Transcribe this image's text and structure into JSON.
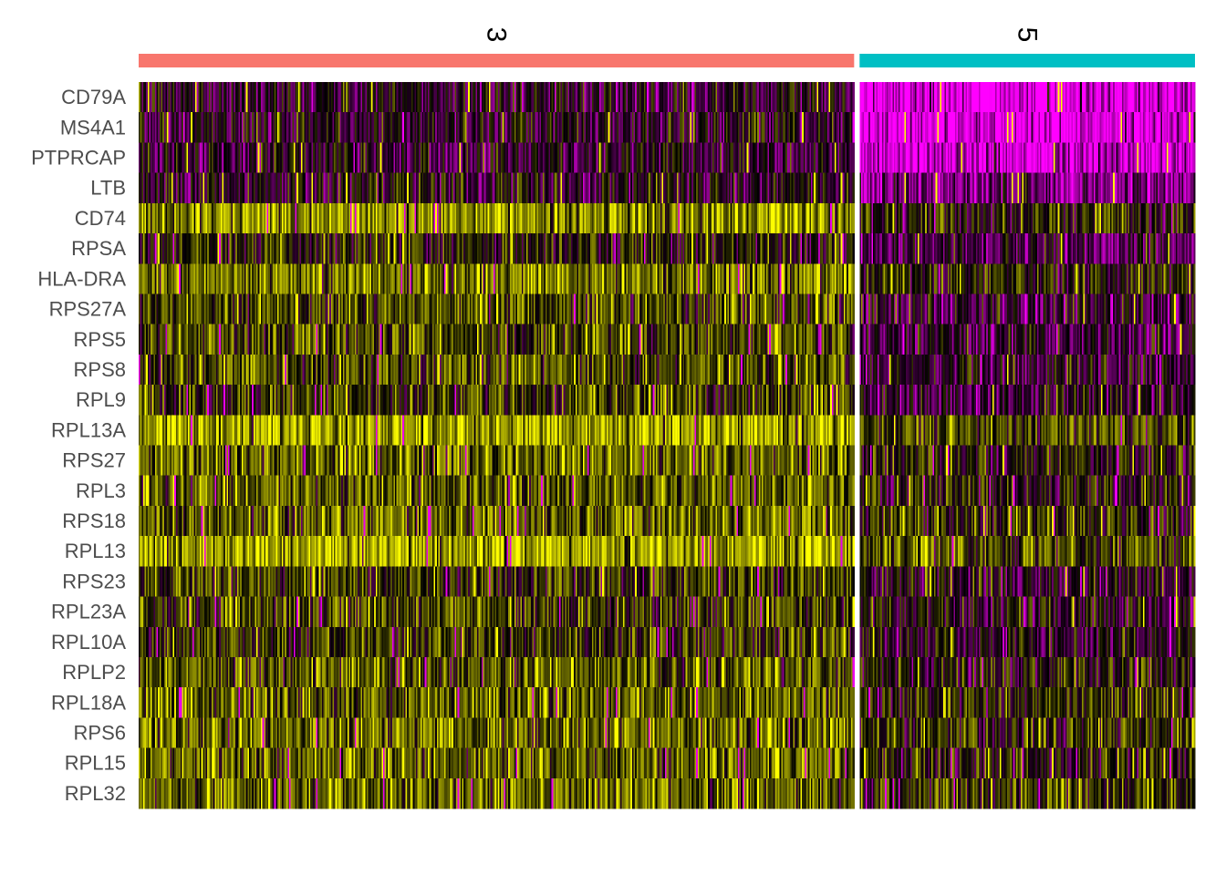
{
  "chart_data": {
    "type": "heatmap",
    "title": "",
    "xlabel": "",
    "ylabel": "",
    "grid": false,
    "legend": "none",
    "genes": [
      "CD79A",
      "MS4A1",
      "PTPRCAP",
      "LTB",
      "CD74",
      "RPSA",
      "HLA-DRA",
      "RPS27A",
      "RPS5",
      "RPS8",
      "RPL9",
      "RPL13A",
      "RPS27",
      "RPL3",
      "RPS18",
      "RPL13",
      "RPS23",
      "RPL23A",
      "RPL10A",
      "RPLP2",
      "RPL18A",
      "RPS6",
      "RPL15",
      "RPL32"
    ],
    "clusters": [
      {
        "name": "3",
        "color": "#F8766D",
        "approx_cells": 480
      },
      {
        "name": "5",
        "color": "#00BFC4",
        "approx_cells": 225
      }
    ],
    "color_scale": {
      "low": "#FF00FF",
      "mid": "#000000",
      "high": "#FFFF00",
      "min": -2.5,
      "max": 2.5
    },
    "mean_scaled_expression": {
      "3": [
        -0.3,
        -0.3,
        -0.3,
        -0.2,
        1.3,
        0.2,
        1.1,
        0.7,
        0.6,
        0.7,
        0.5,
        1.6,
        1.0,
        0.8,
        0.9,
        1.6,
        0.5,
        0.6,
        0.4,
        0.8,
        0.9,
        1.0,
        0.9,
        1.0
      ],
      "5": [
        -2.3,
        -2.2,
        -2.1,
        -1.2,
        0.1,
        -0.7,
        0.1,
        -0.4,
        -0.5,
        -0.4,
        -0.4,
        0.6,
        0.2,
        0.1,
        0.2,
        0.7,
        -0.2,
        0.1,
        -0.2,
        0.1,
        0.3,
        0.3,
        0.2,
        0.4
      ]
    }
  }
}
